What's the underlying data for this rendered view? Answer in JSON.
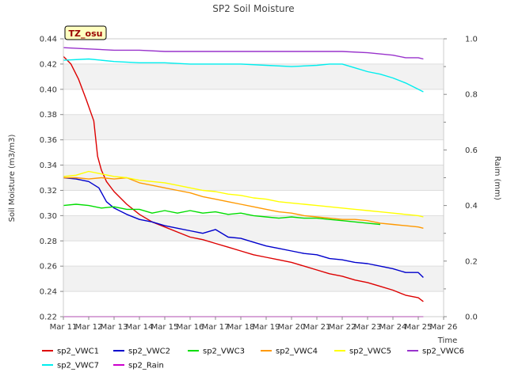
{
  "chart_data": {
    "type": "line",
    "title": "SP2 Soil Moisture",
    "station_badge": "TZ_osu",
    "xlabel": "Time",
    "ylabel": "Soil Moisture (m3/m3)",
    "y2label": "Raim (mm)",
    "ylim": [
      0.22,
      0.44
    ],
    "y2lim": [
      0.0,
      1.0
    ],
    "xlim": [
      11,
      26
    ],
    "x_ticks": [
      {
        "x": 11,
        "label": "Mar 11"
      },
      {
        "x": 12,
        "label": "Mar 12"
      },
      {
        "x": 13,
        "label": "Mar 13"
      },
      {
        "x": 14,
        "label": "Mar 14"
      },
      {
        "x": 15,
        "label": "Mar 15"
      },
      {
        "x": 16,
        "label": "Mar 16"
      },
      {
        "x": 17,
        "label": "Mar 17"
      },
      {
        "x": 18,
        "label": "Mar 18"
      },
      {
        "x": 19,
        "label": "Mar 19"
      },
      {
        "x": 20,
        "label": "Mar 20"
      },
      {
        "x": 21,
        "label": "Mar 21"
      },
      {
        "x": 22,
        "label": "Mar 22"
      },
      {
        "x": 23,
        "label": "Mar 23"
      },
      {
        "x": 24,
        "label": "Mar 24"
      },
      {
        "x": 25,
        "label": "Mar 25"
      },
      {
        "x": 26,
        "label": "Mar 26"
      }
    ],
    "y_ticks": [
      "0.22",
      "0.24",
      "0.26",
      "0.28",
      "0.30",
      "0.32",
      "0.34",
      "0.36",
      "0.38",
      "0.40",
      "0.42",
      "0.44"
    ],
    "y2_ticks": [
      "0.0",
      "0.2",
      "0.4",
      "0.6",
      "0.8",
      "1.0"
    ],
    "grid": true,
    "legend_position": "bottom",
    "series": [
      {
        "name": "sp2_VWC1",
        "color": "#dd0000",
        "axis": "left",
        "x": [
          11.0,
          11.3,
          11.6,
          11.9,
          12.2,
          12.35,
          12.5,
          12.7,
          13.0,
          13.5,
          14.0,
          14.5,
          15.0,
          15.5,
          16.0,
          16.5,
          17.0,
          17.5,
          18.0,
          18.5,
          19.0,
          19.5,
          20.0,
          20.5,
          21.0,
          21.5,
          22.0,
          22.5,
          23.0,
          23.5,
          24.0,
          24.5,
          25.0,
          25.2
        ],
        "y": [
          0.426,
          0.42,
          0.408,
          0.392,
          0.375,
          0.347,
          0.336,
          0.327,
          0.319,
          0.309,
          0.301,
          0.295,
          0.291,
          0.287,
          0.283,
          0.281,
          0.278,
          0.275,
          0.272,
          0.269,
          0.267,
          0.265,
          0.263,
          0.26,
          0.257,
          0.254,
          0.252,
          0.249,
          0.247,
          0.244,
          0.241,
          0.237,
          0.235,
          0.232
        ]
      },
      {
        "name": "sp2_VWC2",
        "color": "#0000cc",
        "axis": "left",
        "x": [
          11.0,
          11.5,
          12.0,
          12.4,
          12.7,
          13.0,
          13.5,
          14.0,
          14.5,
          15.0,
          15.5,
          16.0,
          16.5,
          17.0,
          17.5,
          18.0,
          18.5,
          19.0,
          19.5,
          20.0,
          20.5,
          21.0,
          21.5,
          22.0,
          22.5,
          23.0,
          23.5,
          24.0,
          24.5,
          25.0,
          25.2
        ],
        "y": [
          0.33,
          0.329,
          0.327,
          0.322,
          0.311,
          0.306,
          0.301,
          0.297,
          0.295,
          0.292,
          0.29,
          0.288,
          0.286,
          0.289,
          0.283,
          0.282,
          0.279,
          0.276,
          0.274,
          0.272,
          0.27,
          0.269,
          0.266,
          0.265,
          0.263,
          0.262,
          0.26,
          0.258,
          0.255,
          0.255,
          0.251
        ]
      },
      {
        "name": "sp2_VWC3",
        "color": "#00dd00",
        "axis": "left",
        "x": [
          11.0,
          11.5,
          12.0,
          12.5,
          13.0,
          13.5,
          14.0,
          14.5,
          15.0,
          15.5,
          16.0,
          16.5,
          17.0,
          17.5,
          18.0,
          18.5,
          19.0,
          19.5,
          20.0,
          20.5,
          21.0,
          21.5,
          22.0,
          22.5,
          23.0,
          23.5
        ],
        "y": [
          0.308,
          0.309,
          0.308,
          0.306,
          0.307,
          0.305,
          0.305,
          0.302,
          0.304,
          0.302,
          0.304,
          0.302,
          0.303,
          0.301,
          0.302,
          0.3,
          0.299,
          0.298,
          0.299,
          0.298,
          0.298,
          0.297,
          0.296,
          0.295,
          0.294,
          0.293
        ]
      },
      {
        "name": "sp2_VWC4",
        "color": "#ff9900",
        "axis": "left",
        "x": [
          11.0,
          11.5,
          12.0,
          12.5,
          13.0,
          13.5,
          14.0,
          14.5,
          15.0,
          15.5,
          16.0,
          16.5,
          17.0,
          17.5,
          18.0,
          18.5,
          19.0,
          19.5,
          20.0,
          20.5,
          21.0,
          21.5,
          22.0,
          22.5,
          23.0,
          23.5,
          24.0,
          24.5,
          25.0,
          25.2
        ],
        "y": [
          0.33,
          0.33,
          0.329,
          0.33,
          0.329,
          0.33,
          0.326,
          0.324,
          0.322,
          0.32,
          0.318,
          0.315,
          0.313,
          0.311,
          0.309,
          0.307,
          0.305,
          0.303,
          0.302,
          0.3,
          0.299,
          0.298,
          0.297,
          0.297,
          0.296,
          0.294,
          0.293,
          0.292,
          0.291,
          0.29
        ]
      },
      {
        "name": "sp2_VWC5",
        "color": "#ffff00",
        "axis": "left",
        "x": [
          11.0,
          11.5,
          12.0,
          12.5,
          13.0,
          13.5,
          14.0,
          14.5,
          15.0,
          15.5,
          16.0,
          16.5,
          17.0,
          17.5,
          18.0,
          18.5,
          19.0,
          19.5,
          20.0,
          20.5,
          21.0,
          21.5,
          22.0,
          22.5,
          23.0,
          23.5,
          24.0,
          24.5,
          25.0,
          25.2
        ],
        "y": [
          0.331,
          0.332,
          0.335,
          0.333,
          0.331,
          0.33,
          0.328,
          0.327,
          0.326,
          0.324,
          0.322,
          0.32,
          0.319,
          0.317,
          0.316,
          0.314,
          0.313,
          0.311,
          0.31,
          0.309,
          0.308,
          0.307,
          0.306,
          0.305,
          0.304,
          0.303,
          0.302,
          0.301,
          0.3,
          0.299
        ]
      },
      {
        "name": "sp2_VWC6",
        "color": "#9933cc",
        "axis": "left",
        "x": [
          11.0,
          12.0,
          13.0,
          14.0,
          15.0,
          16.0,
          17.0,
          18.0,
          19.0,
          20.0,
          21.0,
          22.0,
          23.0,
          24.0,
          24.5,
          25.0,
          25.2
        ],
        "y": [
          0.433,
          0.432,
          0.431,
          0.431,
          0.43,
          0.43,
          0.43,
          0.43,
          0.43,
          0.43,
          0.43,
          0.43,
          0.429,
          0.427,
          0.425,
          0.425,
          0.424
        ]
      },
      {
        "name": "sp2_VWC7",
        "color": "#00eeee",
        "axis": "left",
        "x": [
          11.0,
          12.0,
          13.0,
          14.0,
          15.0,
          16.0,
          17.0,
          18.0,
          19.0,
          20.0,
          21.0,
          21.5,
          22.0,
          22.5,
          23.0,
          23.5,
          24.0,
          24.5,
          25.0,
          25.2
        ],
        "y": [
          0.423,
          0.424,
          0.422,
          0.421,
          0.421,
          0.42,
          0.42,
          0.42,
          0.419,
          0.418,
          0.419,
          0.42,
          0.42,
          0.417,
          0.414,
          0.412,
          0.409,
          0.405,
          0.4,
          0.398
        ]
      },
      {
        "name": "sp2_Rain",
        "color": "#cc00cc",
        "axis": "right",
        "x": [
          11.0,
          25.2
        ],
        "y": [
          0.0,
          0.0
        ]
      }
    ]
  }
}
